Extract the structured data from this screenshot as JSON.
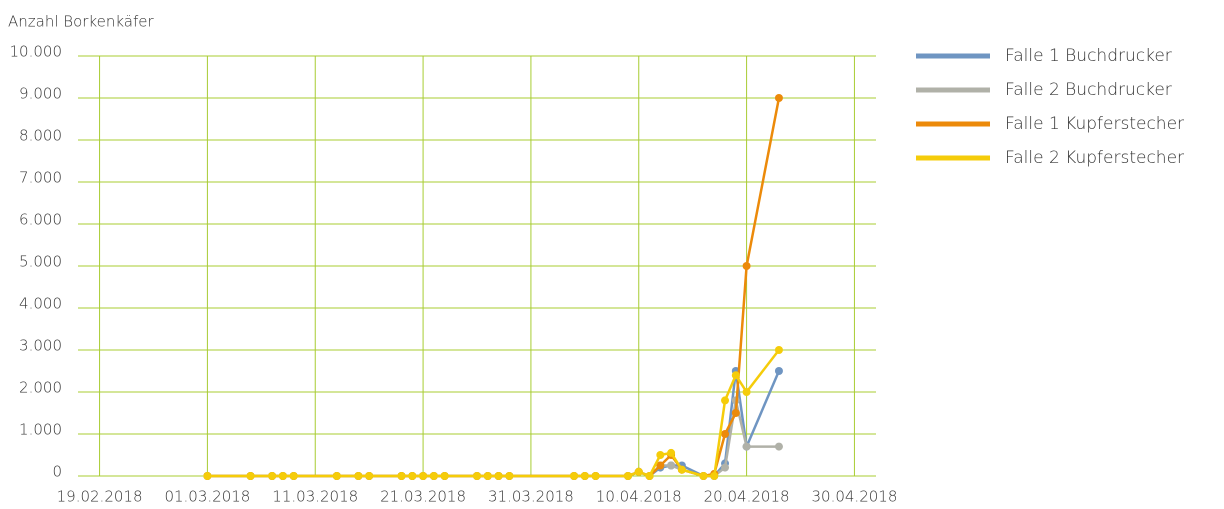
{
  "chart_data": {
    "type": "line",
    "title": "Anzahl Borkenkäfer",
    "x": [
      "01.03.2018",
      "05.03.2018",
      "07.03.2018",
      "08.03.2018",
      "09.03.2018",
      "13.03.2018",
      "15.03.2018",
      "16.03.2018",
      "19.03.2018",
      "20.03.2018",
      "21.03.2018",
      "22.03.2018",
      "23.03.2018",
      "26.03.2018",
      "27.03.2018",
      "28.03.2018",
      "29.03.2018",
      "04.04.2018",
      "05.04.2018",
      "06.04.2018",
      "09.04.2018",
      "10.04.2018",
      "11.04.2018",
      "12.04.2018",
      "13.04.2018",
      "14.04.2018",
      "16.04.2018",
      "17.04.2018",
      "18.04.2018",
      "19.04.2018",
      "20.04.2018",
      "23.04.2018"
    ],
    "series": [
      {
        "name": "Falle 1 Buchdrucker",
        "color": "#6f95c2",
        "values": [
          0,
          0,
          0,
          0,
          0,
          0,
          0,
          0,
          0,
          0,
          0,
          0,
          0,
          0,
          0,
          0,
          0,
          0,
          0,
          0,
          0,
          100,
          0,
          200,
          250,
          250,
          0,
          0,
          300,
          2500,
          700,
          2500
        ]
      },
      {
        "name": "Falle 2 Buchdrucker",
        "color": "#b0b1a8",
        "values": [
          0,
          0,
          0,
          0,
          0,
          0,
          0,
          0,
          0,
          0,
          0,
          0,
          0,
          0,
          0,
          0,
          0,
          0,
          0,
          0,
          0,
          100,
          0,
          250,
          250,
          150,
          0,
          0,
          200,
          1800,
          700,
          700
        ]
      },
      {
        "name": "Falle 1 Kupferstecher",
        "color": "#ec8a0a",
        "values": [
          0,
          0,
          0,
          0,
          0,
          0,
          0,
          0,
          0,
          0,
          0,
          0,
          0,
          0,
          0,
          0,
          0,
          0,
          0,
          0,
          0,
          100,
          0,
          250,
          500,
          150,
          0,
          50,
          1000,
          1500,
          5000,
          9000
        ]
      },
      {
        "name": "Falle 2 Kupferstecher",
        "color": "#f5cc0a",
        "values": [
          0,
          0,
          0,
          0,
          0,
          0,
          0,
          0,
          0,
          0,
          0,
          0,
          0,
          0,
          0,
          0,
          0,
          0,
          0,
          0,
          0,
          100,
          0,
          500,
          550,
          150,
          0,
          0,
          1800,
          2400,
          2000,
          3000
        ]
      }
    ],
    "xlim": [
      "17.02.2018",
      "02.05.2018"
    ],
    "xticks": [
      "19.02.2018",
      "01.03.2018",
      "11.03.2018",
      "21.03.2018",
      "31.03.2018",
      "10.04.2018",
      "20.04.2018",
      "30.04.2018"
    ],
    "ylim": [
      0,
      10000
    ],
    "yticks": [
      0,
      {
        "value": 1000,
        "label": "1.000"
      },
      {
        "value": 2000,
        "label": "2.000"
      },
      {
        "value": 3000,
        "label": "3.000"
      },
      {
        "value": 4000,
        "label": "4.000"
      },
      {
        "value": 5000,
        "label": "5.000"
      },
      {
        "value": 6000,
        "label": "6.000"
      },
      {
        "value": 7000,
        "label": "7.000"
      },
      {
        "value": 8000,
        "label": "8.000"
      },
      {
        "value": 9000,
        "label": "9.000"
      },
      {
        "value": 10000,
        "label": "10.000"
      }
    ],
    "grid": true,
    "grid_color": "#a8cc32",
    "legend": "right"
  }
}
